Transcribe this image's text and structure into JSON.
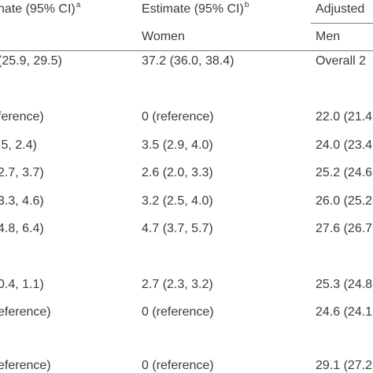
{
  "header": {
    "col1_title": "nate (95% CI)",
    "col1_sup": "a",
    "col2_title": "Estimate (95% CI)",
    "col2_sup": "b",
    "col3_title": "Adjusted",
    "col2_sub": "Women",
    "col3_sub": "Men"
  },
  "rows": [
    {
      "c1": "(25.9, 29.5)",
      "c2": "37.2 (36.0, 38.4)",
      "c3": "Overall 2"
    },
    {
      "c1": "ference)",
      "c2": "0 (reference)",
      "c3": "22.0 (21.4"
    },
    {
      "c1": ".5, 2.4)",
      "c2": "3.5 (2.9, 4.0)",
      "c3": "24.0 (23.4"
    },
    {
      "c1": "2.7, 3.7)",
      "c2": "2.6 (2.0, 3.3)",
      "c3": "25.2 (24.6"
    },
    {
      "c1": "3.3, 4.6)",
      "c2": "3.2 (2.5, 4.0)",
      "c3": "26.0 (25.2"
    },
    {
      "c1": "4.8, 6.4)",
      "c2": "4.7 (3.7, 5.7)",
      "c3": "27.6 (26.7"
    },
    {
      "c1": "0.4, 1.1)",
      "c2": "2.7 (2.3, 3.2)",
      "c3": "25.3 (24.8"
    },
    {
      "c1": "eference)",
      "c2": "0 (reference)",
      "c3": "24.6 (24.1"
    },
    {
      "c1": "eference)",
      "c2": "0 (reference)",
      "c3": "29.1 (27.2"
    }
  ]
}
